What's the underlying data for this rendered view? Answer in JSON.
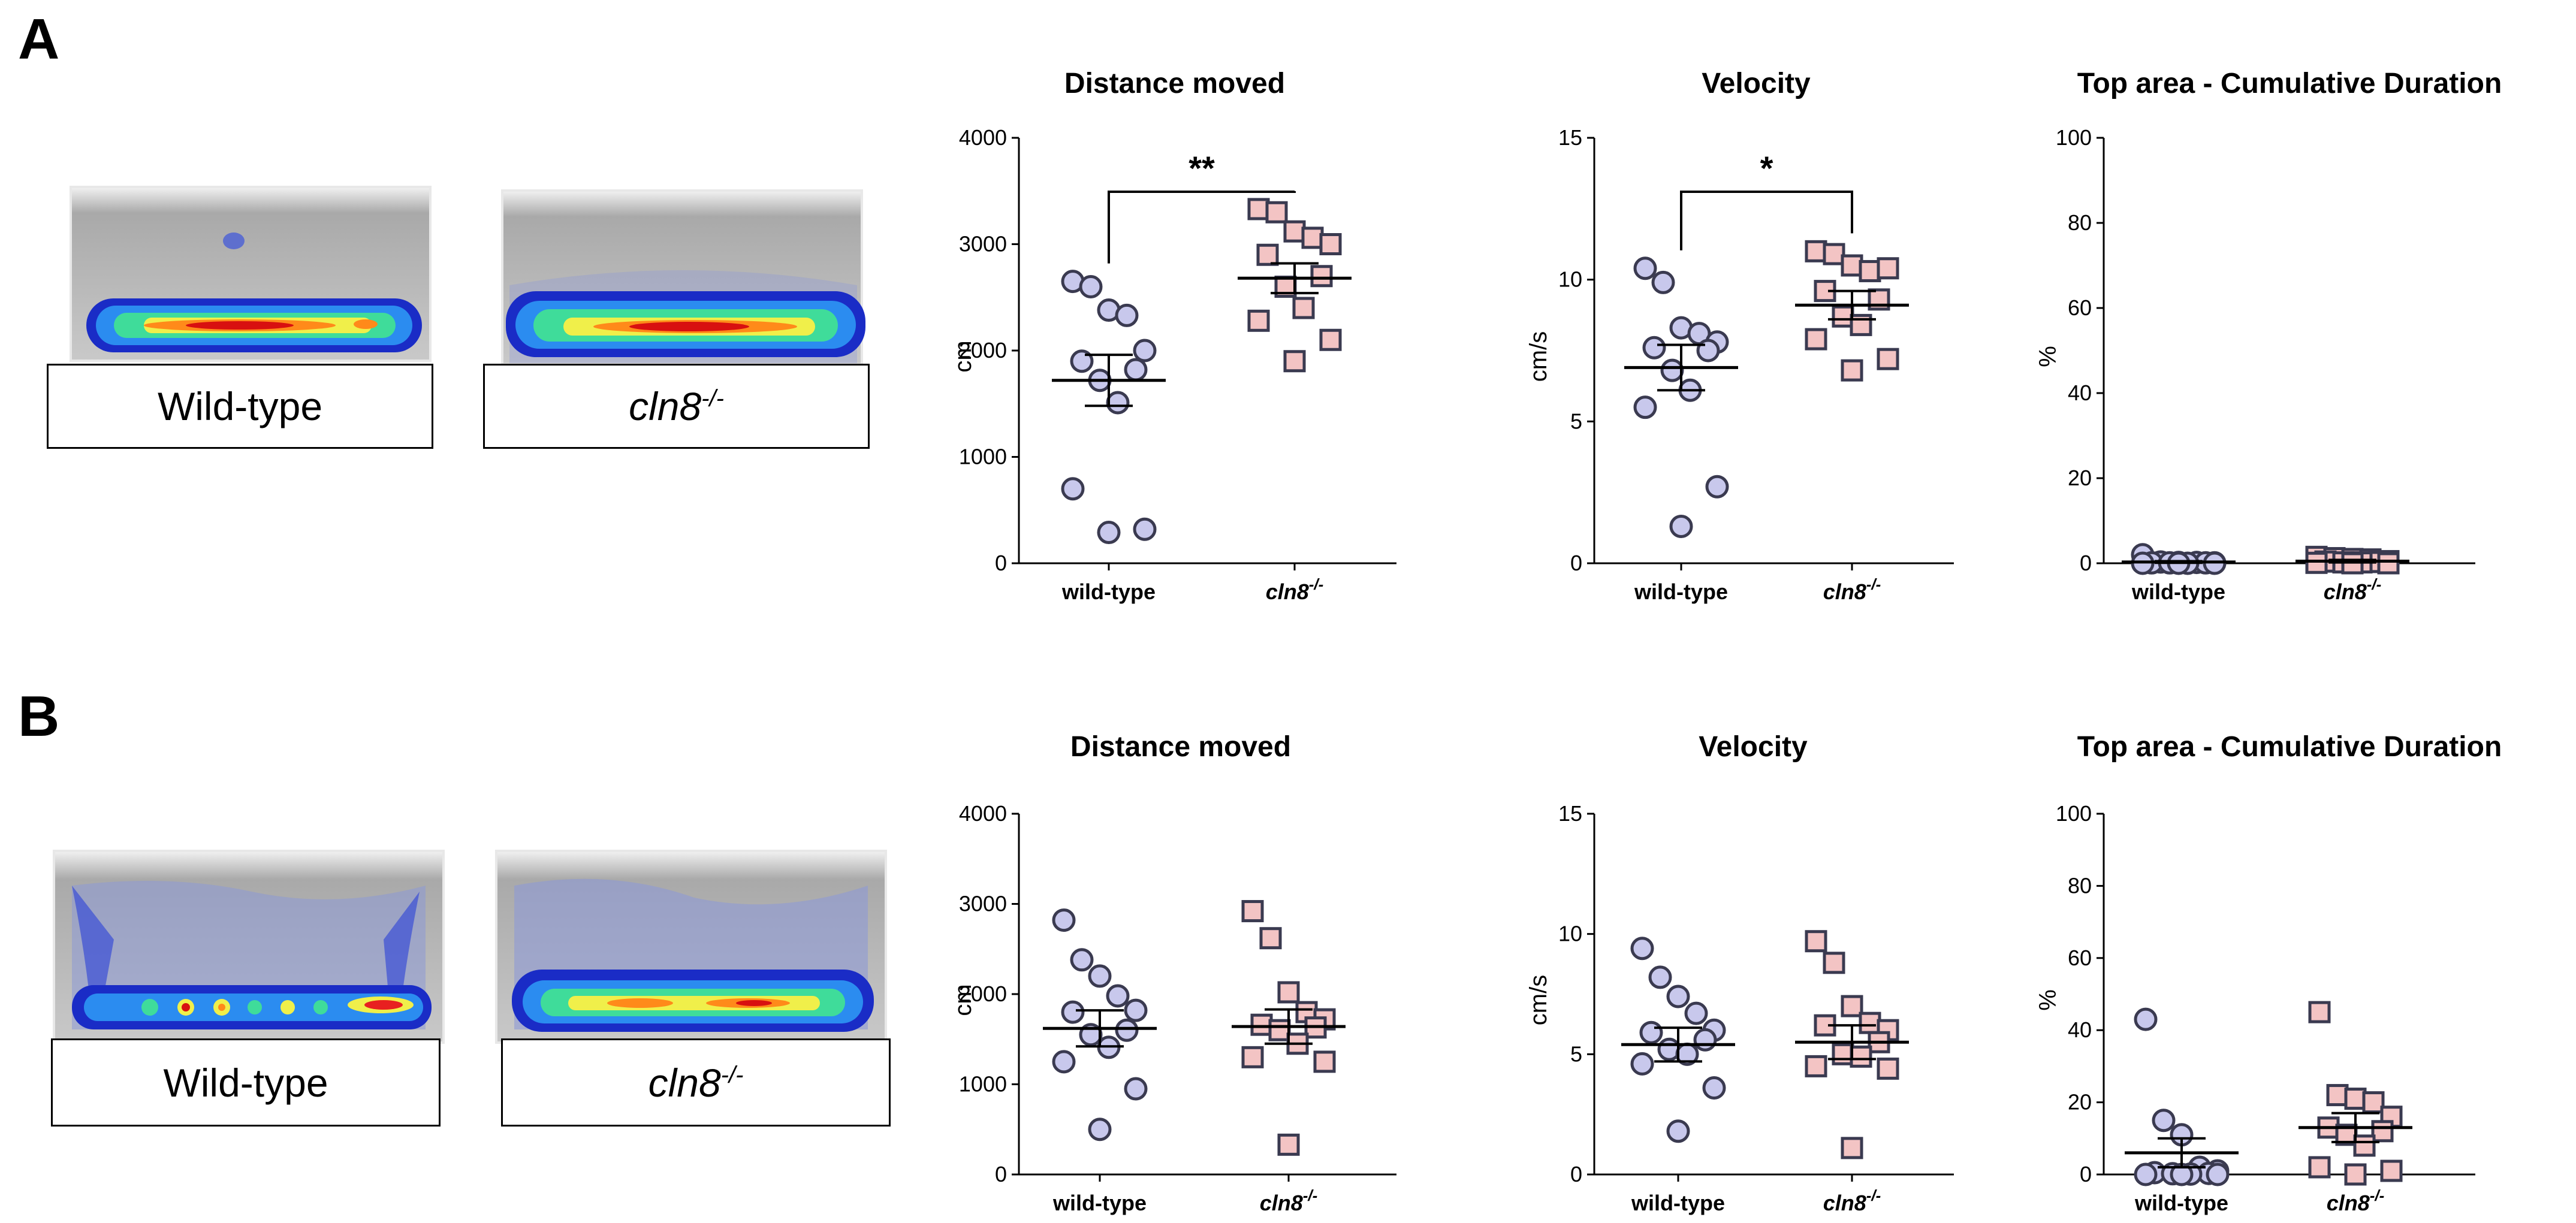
{
  "panels": [
    {
      "label": "A",
      "captions": {
        "wt": "Wild-type",
        "mut_base": "cln8",
        "mut_sup": "-/-"
      },
      "heatmap_style": "bottom-band"
    },
    {
      "label": "B",
      "captions": {
        "wt": "Wild-type",
        "mut_base": "cln8",
        "mut_sup": "-/-"
      },
      "heatmap_style": "bottom-band-wide"
    }
  ],
  "colors": {
    "wt_fill": "#c8c8ec",
    "mut_fill": "#f3c4c4",
    "marker_stroke": "#3a3a50",
    "axis": "#000000"
  },
  "chart_data": [
    {
      "type": "scatter",
      "panel": "A",
      "title": "Distance moved",
      "ylabel": "cm",
      "ylim": [
        0,
        4000
      ],
      "yticks": [
        0,
        1000,
        2000,
        3000,
        4000
      ],
      "categories": [
        {
          "base": "wild-type",
          "sup": ""
        },
        {
          "base": "cln8",
          "sup": "-/-",
          "italic": true
        }
      ],
      "series": [
        {
          "marker": "circle",
          "values": [
            2650,
            2600,
            2380,
            2330,
            2000,
            1900,
            1820,
            1720,
            1510,
            700,
            320,
            290
          ],
          "mean": 1720,
          "sem": 240
        },
        {
          "marker": "square",
          "values": [
            3330,
            3300,
            3120,
            3060,
            3000,
            2900,
            2700,
            2600,
            2400,
            2280,
            2100,
            1900
          ],
          "mean": 2680,
          "sem": 140
        }
      ],
      "significance": {
        "text": "**",
        "between": [
          0,
          1
        ]
      }
    },
    {
      "type": "scatter",
      "panel": "A",
      "title": "Velocity",
      "ylabel": "cm/s",
      "ylim": [
        0,
        15
      ],
      "yticks": [
        0,
        5,
        10,
        15
      ],
      "categories": [
        {
          "base": "wild-type",
          "sup": ""
        },
        {
          "base": "cln8",
          "sup": "-/-",
          "italic": true
        }
      ],
      "series": [
        {
          "marker": "circle",
          "values": [
            10.4,
            9.9,
            8.3,
            8.1,
            7.8,
            7.6,
            7.5,
            6.8,
            6.1,
            5.5,
            2.7,
            1.3
          ],
          "mean": 6.9,
          "sem": 0.8
        },
        {
          "marker": "square",
          "values": [
            11.0,
            10.9,
            10.5,
            10.3,
            10.4,
            9.6,
            9.3,
            8.7,
            8.4,
            7.9,
            7.2,
            6.8
          ],
          "mean": 9.1,
          "sem": 0.5
        }
      ],
      "significance": {
        "text": "*",
        "between": [
          0,
          1
        ]
      }
    },
    {
      "type": "scatter",
      "panel": "A",
      "title": "Top area - Cumulative Duration",
      "ylabel": "%",
      "ylim": [
        0,
        100
      ],
      "yticks": [
        0,
        20,
        40,
        60,
        80,
        100
      ],
      "categories": [
        {
          "base": "wild-type",
          "sup": ""
        },
        {
          "base": "cln8",
          "sup": "-/-",
          "italic": true
        }
      ],
      "series": [
        {
          "marker": "circle",
          "values": [
            2,
            0.3,
            0.2,
            0.2,
            0.1,
            0.1,
            0.1,
            0.1,
            0,
            0,
            0,
            0
          ],
          "mean": 0.3,
          "sem": 0.2
        },
        {
          "marker": "square",
          "values": [
            1.5,
            1.2,
            1.0,
            0.9,
            0.5,
            0.4,
            0.3,
            0.2,
            0.2,
            0.1,
            0,
            0
          ],
          "mean": 0.5,
          "sem": 0.3
        }
      ],
      "significance": null
    },
    {
      "type": "scatter",
      "panel": "B",
      "title": "Distance moved",
      "ylabel": "cm",
      "ylim": [
        0,
        4000
      ],
      "yticks": [
        0,
        1000,
        2000,
        3000,
        4000
      ],
      "categories": [
        {
          "base": "wild-type",
          "sup": ""
        },
        {
          "base": "cln8",
          "sup": "-/-",
          "italic": true
        }
      ],
      "series": [
        {
          "marker": "circle",
          "values": [
            2820,
            2380,
            2200,
            1980,
            1820,
            1800,
            1600,
            1550,
            1410,
            1250,
            950,
            500
          ],
          "mean": 1620,
          "sem": 200
        },
        {
          "marker": "square",
          "values": [
            2920,
            2620,
            2020,
            1800,
            1720,
            1660,
            1630,
            1600,
            1450,
            1300,
            1250,
            330
          ],
          "mean": 1640,
          "sem": 190
        }
      ],
      "significance": null
    },
    {
      "type": "scatter",
      "panel": "B",
      "title": "Velocity",
      "ylabel": "cm/s",
      "ylim": [
        0,
        15
      ],
      "yticks": [
        0,
        5,
        10,
        15
      ],
      "categories": [
        {
          "base": "wild-type",
          "sup": ""
        },
        {
          "base": "cln8",
          "sup": "-/-",
          "italic": true
        }
      ],
      "series": [
        {
          "marker": "circle",
          "values": [
            9.4,
            8.2,
            7.4,
            6.7,
            6.0,
            5.9,
            5.6,
            5.2,
            5.0,
            4.6,
            3.6,
            1.8
          ],
          "mean": 5.4,
          "sem": 0.7
        },
        {
          "marker": "square",
          "values": [
            9.7,
            8.8,
            7.0,
            6.3,
            6.0,
            6.2,
            5.5,
            5.0,
            4.9,
            4.5,
            4.4,
            1.1
          ],
          "mean": 5.5,
          "sem": 0.7
        }
      ],
      "significance": null
    },
    {
      "type": "scatter",
      "panel": "B",
      "title": "Top area - Cumulative Duration",
      "ylabel": "%",
      "ylim": [
        0,
        100
      ],
      "yticks": [
        0,
        20,
        40,
        60,
        80,
        100
      ],
      "categories": [
        {
          "base": "wild-type",
          "sup": ""
        },
        {
          "base": "cln8",
          "sup": "-/-",
          "italic": true
        }
      ],
      "series": [
        {
          "marker": "circle",
          "values": [
            43,
            15,
            11,
            2,
            1,
            0.5,
            0.3,
            0.2,
            0.1,
            0,
            0,
            0
          ],
          "mean": 6,
          "sem": 4
        },
        {
          "marker": "square",
          "values": [
            45,
            22,
            21,
            20,
            16,
            13,
            12,
            11,
            8,
            2,
            1,
            0
          ],
          "mean": 13,
          "sem": 4
        }
      ],
      "significance": null
    }
  ]
}
